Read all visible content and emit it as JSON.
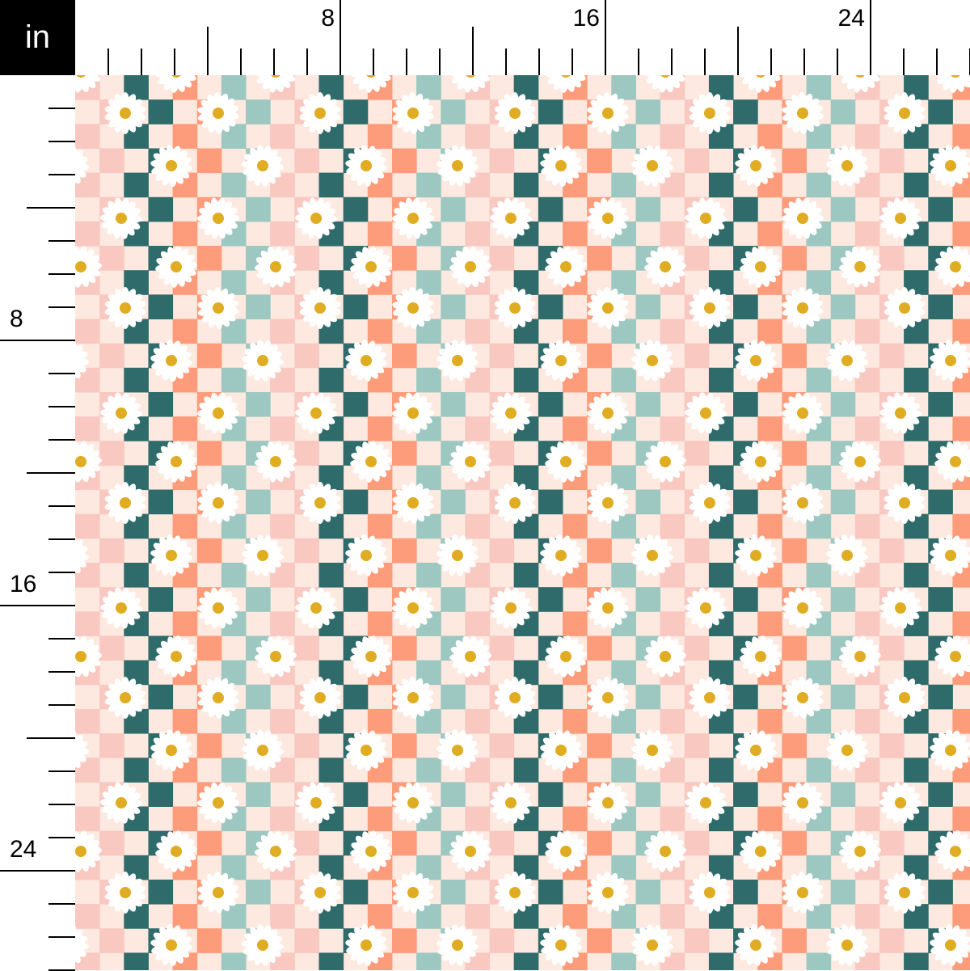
{
  "ruler": {
    "unit": "in",
    "top_labels": [
      {
        "value": 8,
        "text": "8"
      },
      {
        "value": 16,
        "text": "16"
      },
      {
        "value": 24,
        "text": "24"
      }
    ],
    "left_labels": [
      {
        "value": 8,
        "text": "8"
      },
      {
        "value": 16,
        "text": "16"
      },
      {
        "value": 24,
        "text": "24"
      }
    ]
  },
  "fabric": {
    "pattern": "checkerboard with daisies",
    "colors": {
      "cream": "#fde9df",
      "pink": "#f8c8c1",
      "teal": "#2f6b6b",
      "orange": "#fd9c7a",
      "mint": "#9dc8c1",
      "petal": "#ffffff",
      "daisy_center": "#e0ac22"
    }
  }
}
